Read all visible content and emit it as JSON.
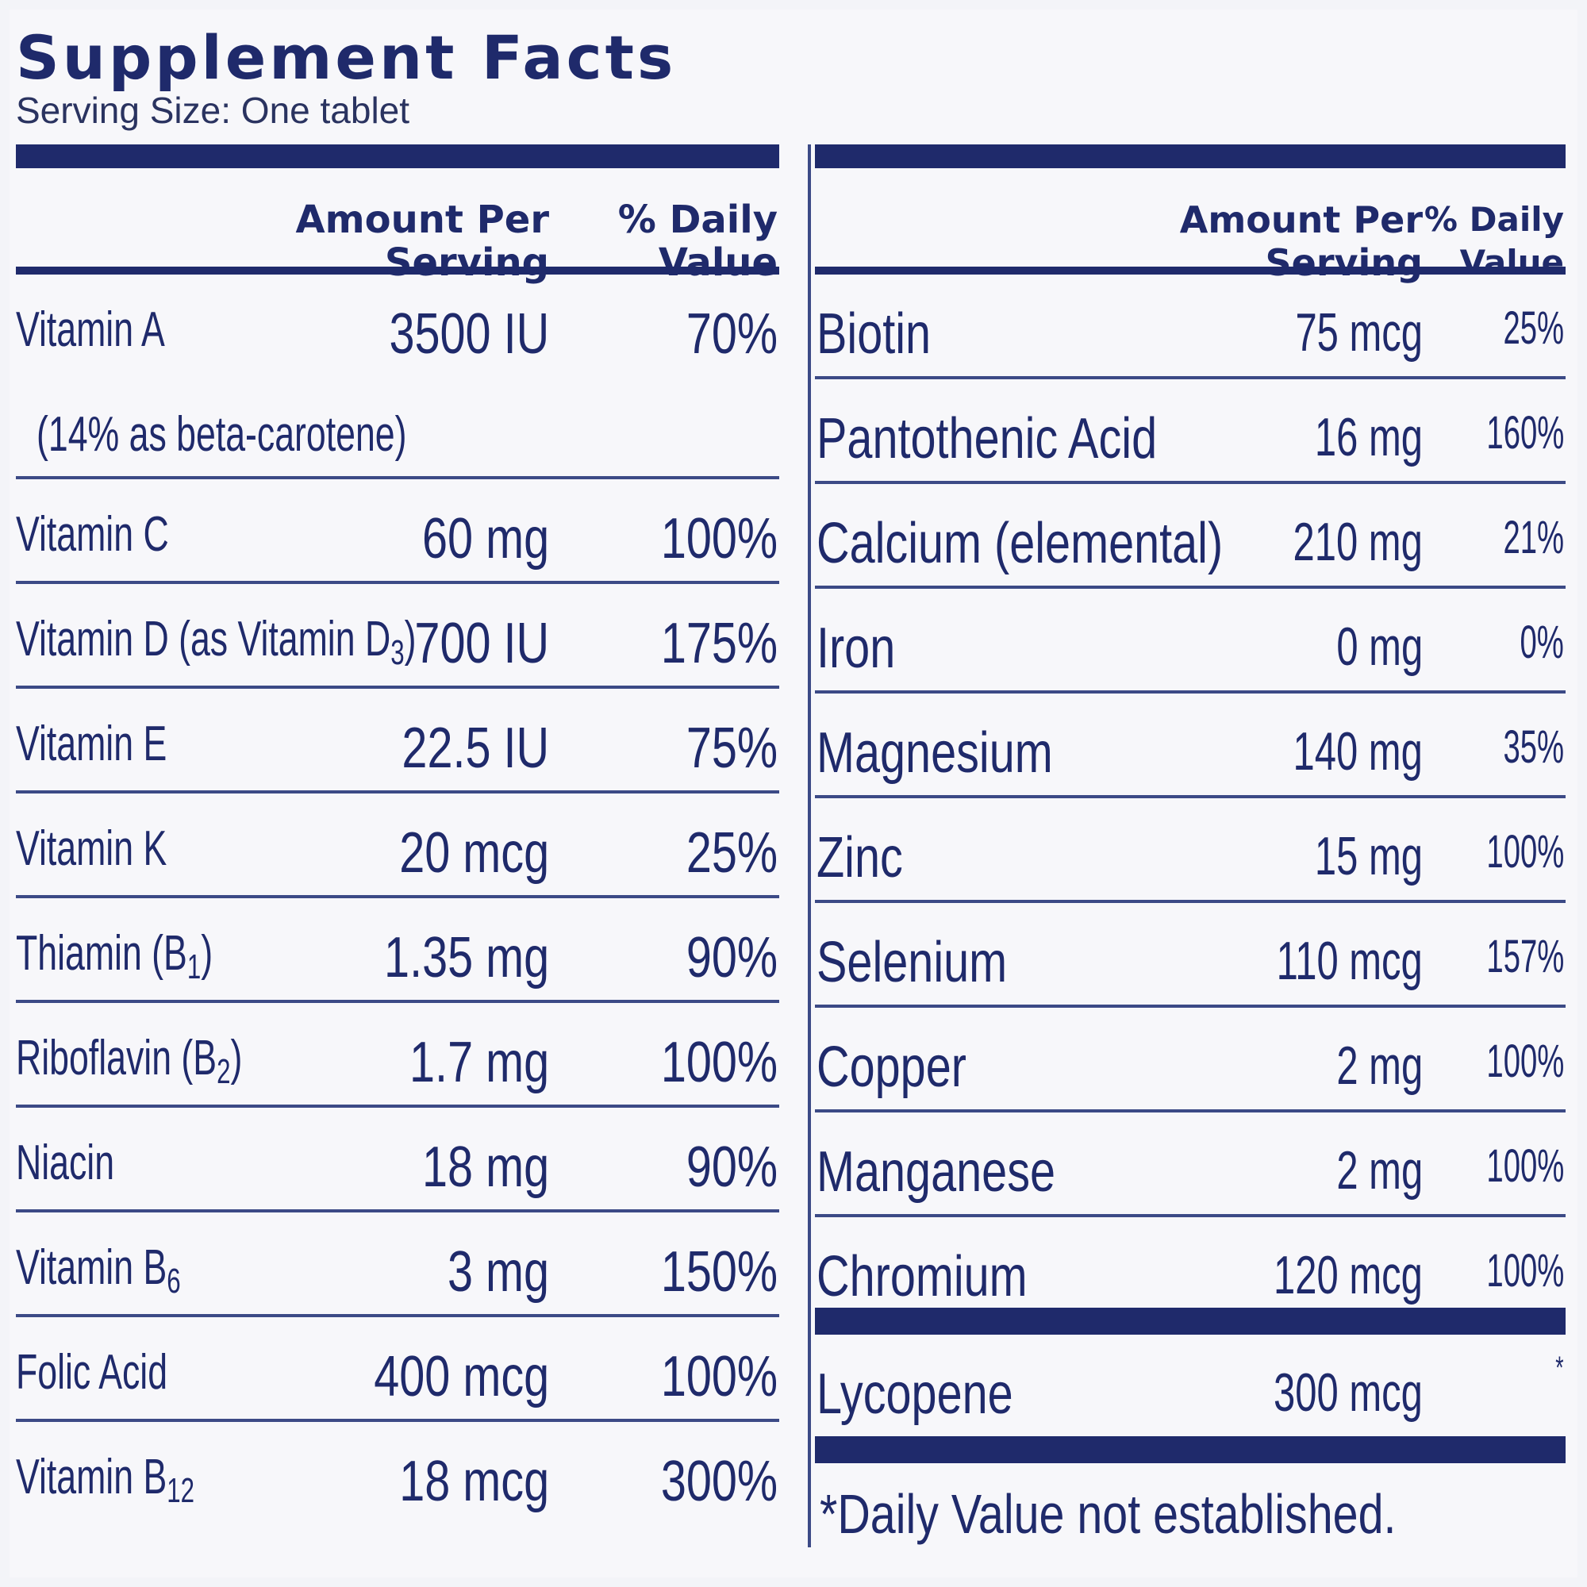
{
  "title": "Supplement Facts",
  "serving_size": "Serving Size: One tablet",
  "headers": {
    "amount": "Amount Per\nServing",
    "daily_value": "% Daily\nValue"
  },
  "left_rows": [
    {
      "name": "Vitamin A",
      "amount": "3500 IU",
      "dv": "70%"
    },
    {
      "name": "(14% as beta-carotene)",
      "amount": "",
      "dv": ""
    },
    {
      "name": "Vitamin C",
      "amount": "60 mg",
      "dv": "100%"
    },
    {
      "name": "Vitamin D (as Vitamin D",
      "sub": "3",
      "suffix": ")",
      "amount": "700 IU",
      "dv": "175%"
    },
    {
      "name": "Vitamin E",
      "amount": "22.5 IU",
      "dv": "75%"
    },
    {
      "name": "Vitamin K",
      "amount": "20 mcg",
      "dv": "25%"
    },
    {
      "name": "Thiamin (B",
      "sub": "1",
      "suffix": ")",
      "amount": "1.35 mg",
      "dv": "90%"
    },
    {
      "name": "Riboflavin (B",
      "sub": "2",
      "suffix": ")",
      "amount": "1.7 mg",
      "dv": "100%"
    },
    {
      "name": "Niacin",
      "amount": "18 mg",
      "dv": "90%"
    },
    {
      "name": "Vitamin B",
      "sub": "6",
      "suffix": "",
      "amount": "3 mg",
      "dv": "150%"
    },
    {
      "name": "Folic Acid",
      "amount": "400 mcg",
      "dv": "100%"
    },
    {
      "name": "Vitamin B",
      "sub": "12",
      "suffix": "",
      "amount": "18 mcg",
      "dv": "300%"
    }
  ],
  "right_rows": [
    {
      "name": "Biotin",
      "amount": "75 mcg",
      "dv": "25%"
    },
    {
      "name": "Pantothenic Acid",
      "amount": "16 mg",
      "dv": "160%"
    },
    {
      "name": "Calcium (elemental)",
      "amount": "210 mg",
      "dv": "21%"
    },
    {
      "name": "Iron",
      "amount": "0 mg",
      "dv": "0%"
    },
    {
      "name": "Magnesium",
      "amount": "140 mg",
      "dv": "35%"
    },
    {
      "name": "Zinc",
      "amount": "15 mg",
      "dv": "100%"
    },
    {
      "name": "Selenium",
      "amount": "110 mcg",
      "dv": "157%"
    },
    {
      "name": "Copper",
      "amount": "2 mg",
      "dv": "100%"
    },
    {
      "name": "Manganese",
      "amount": "2 mg",
      "dv": "100%"
    },
    {
      "name": "Chromium",
      "amount": "120 mcg",
      "dv": "100%"
    }
  ],
  "extra_row": {
    "name": "Lycopene",
    "amount": "300 mcg",
    "dv": "*"
  },
  "footnote": "*Daily Value not established.",
  "colors": {
    "ink": "#1f2a6b",
    "background": "#f7f7fa"
  }
}
